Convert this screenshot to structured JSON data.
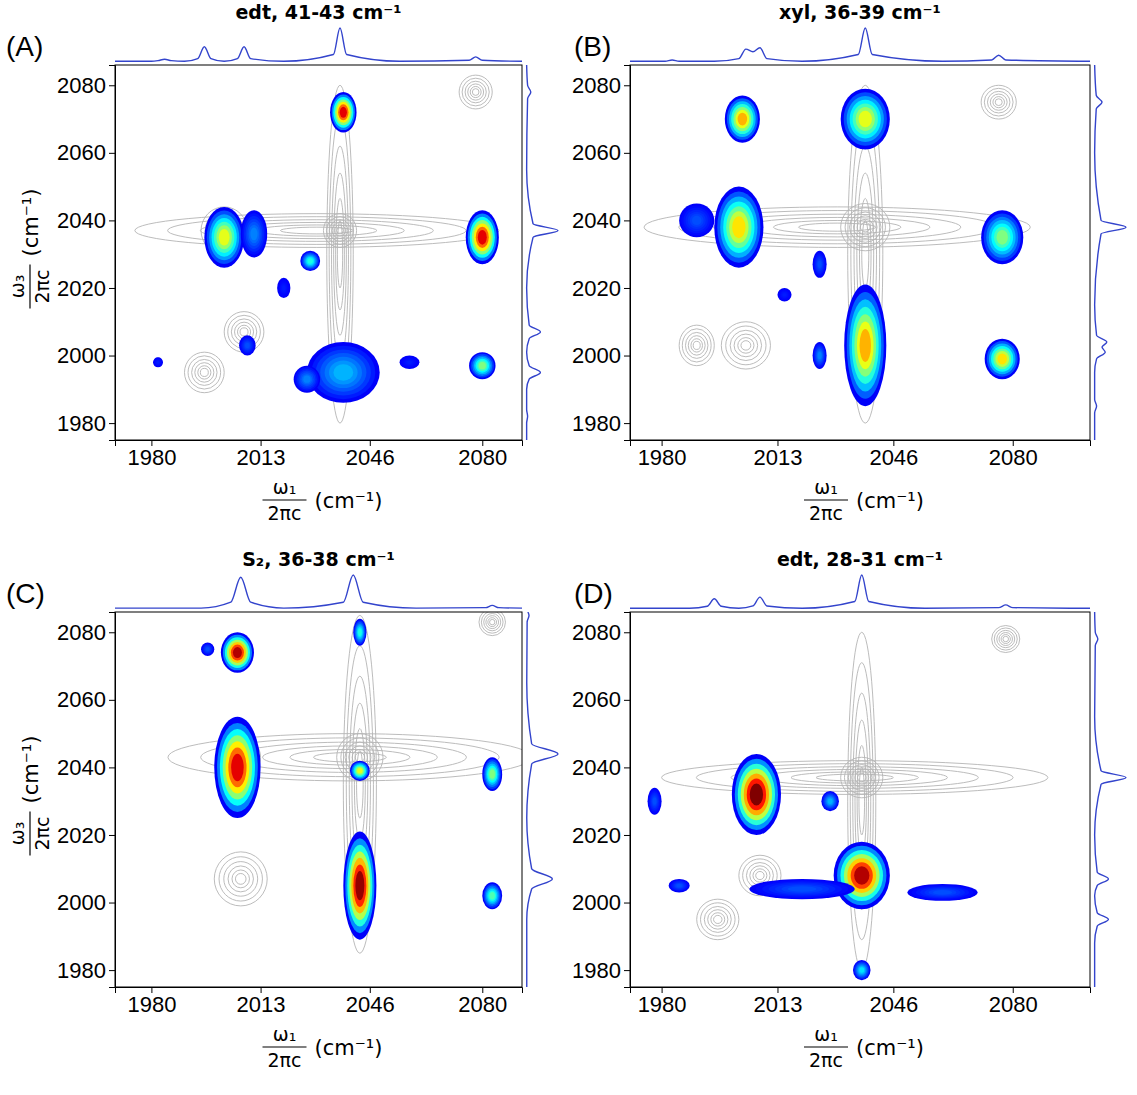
{
  "chart_data": [
    {
      "type": "contour",
      "label": "(A)",
      "title": "edt, 41-43 cm⁻¹",
      "x_label": {
        "numerator": "ω₁",
        "denominator": "2πc",
        "unit": "(cm⁻¹)"
      },
      "y_label": {
        "numerator": "ω₃",
        "denominator": "2πc",
        "unit": "(cm⁻¹)"
      },
      "xlim": [
        1969,
        2092
      ],
      "ylim": [
        1975,
        2086
      ],
      "xticks": [
        1980,
        2013,
        2046,
        2080
      ],
      "yticks": [
        1980,
        2000,
        2020,
        2040,
        2060,
        2080
      ],
      "top_spectrum": {
        "color": "#3344cc",
        "x": [
          1969,
          1980,
          1982,
          1984,
          1986,
          1990,
          1994,
          1996,
          1998,
          2002,
          2006,
          2008,
          2010,
          2020,
          2035,
          2037,
          2039,
          2055,
          2076,
          2078,
          2080,
          2092
        ],
        "values": [
          0.02,
          0.02,
          0.04,
          0.08,
          0.04,
          0.02,
          0.1,
          0.45,
          0.1,
          0.02,
          0.1,
          0.45,
          0.1,
          0.02,
          0.22,
          1.0,
          0.22,
          0.02,
          0.05,
          0.15,
          0.05,
          0.02
        ]
      },
      "side_spectrum": {
        "color": "#3344cc",
        "y": [
          1975,
          1980,
          1982,
          1984,
          1990,
          1993,
          1995,
          1997,
          2001,
          2005,
          2007,
          2009,
          2020,
          2035,
          2037,
          2039,
          2055,
          2076,
          2078,
          2080,
          2086
        ],
        "values": [
          0.02,
          0.02,
          0.05,
          0.02,
          0.02,
          0.1,
          0.45,
          0.1,
          0.02,
          0.1,
          0.45,
          0.1,
          0.02,
          0.22,
          1.0,
          0.22,
          0.02,
          0.05,
          0.15,
          0.05,
          0.02
        ]
      },
      "contours": {
        "color": "#b4b4b4",
        "x": [
          1996,
          2008,
          2037,
          2030,
          2037,
          2078,
          2037,
          2002
        ],
        "y": [
          1995,
          2007,
          2037,
          2037,
          2030,
          2078,
          1995,
          2037
        ],
        "x_width": [
          12,
          12,
          10,
          110,
          8,
          10,
          14,
          14
        ],
        "y_width": [
          12,
          12,
          10,
          10,
          100,
          10,
          14,
          14
        ]
      },
      "peaks": {
        "x": [
          2038,
          2002,
          2011,
          2080,
          2038,
          2027,
          2080,
          2009,
          2028,
          2020,
          2058,
          1982
        ],
        "y": [
          2072,
          2035,
          2036,
          2035,
          1995,
          1993,
          1997,
          2003,
          2028,
          2020,
          1998,
          1998
        ],
        "x_width": [
          8,
          12,
          8,
          10,
          22,
          8,
          8,
          5,
          6,
          4,
          6,
          3
        ],
        "y_width": [
          12,
          18,
          14,
          16,
          18,
          8,
          8,
          6,
          6,
          6,
          4,
          3
        ],
        "intensity": [
          0.9,
          0.6,
          0.25,
          0.9,
          0.3,
          0.25,
          0.5,
          0.2,
          0.4,
          0.15,
          0.15,
          0.15
        ]
      }
    },
    {
      "type": "contour",
      "label": "(B)",
      "title": "xyl, 36-39 cm⁻¹",
      "x_label": {
        "numerator": "ω₁",
        "denominator": "2πc",
        "unit": "(cm⁻¹)"
      },
      "xlim": [
        1971,
        2102
      ],
      "ylim": [
        1975,
        2086
      ],
      "xticks": [
        1980,
        2013,
        2046,
        2080
      ],
      "yticks": [
        1980,
        2000,
        2020,
        2040,
        2060,
        2080
      ],
      "top_spectrum": {
        "color": "#3344cc",
        "x": [
          1971,
          1981,
          1983,
          1985,
          1995,
          2002,
          2004,
          2006,
          2008,
          2010,
          2020,
          2036,
          2038,
          2040,
          2060,
          2074,
          2076,
          2078,
          2102
        ],
        "values": [
          0.02,
          0.02,
          0.06,
          0.02,
          0.02,
          0.1,
          0.38,
          0.3,
          0.42,
          0.1,
          0.02,
          0.22,
          1.0,
          0.22,
          0.02,
          0.06,
          0.2,
          0.06,
          0.02
        ]
      },
      "side_spectrum": {
        "color": "#3344cc",
        "y": [
          1975,
          1983,
          1985,
          1987,
          1995,
          1999,
          2001,
          2002.5,
          2004,
          2006,
          2015,
          2036,
          2038,
          2040,
          2060,
          2073,
          2075,
          2077,
          2086
        ],
        "values": [
          0.02,
          0.02,
          0.08,
          0.02,
          0.02,
          0.08,
          0.35,
          0.25,
          0.4,
          0.08,
          0.02,
          0.22,
          1.0,
          0.22,
          0.02,
          0.07,
          0.25,
          0.07,
          0.02
        ]
      },
      "contours": {
        "color": "#b4b4b4",
        "x": [
          2004,
          2038,
          2030,
          2038,
          1990,
          2076
        ],
        "y": [
          2003,
          2038,
          2038,
          2030,
          2003,
          2075
        ],
        "x_width": [
          14,
          14,
          110,
          10,
          10,
          10
        ],
        "y_width": [
          14,
          14,
          12,
          100,
          12,
          10
        ]
      },
      "peaks": {
        "x": [
          2003,
          2038,
          2002,
          1990,
          2077,
          2038,
          2077,
          2025,
          2025,
          2015
        ],
        "y": [
          2070,
          2070,
          2038,
          2040,
          2035,
          2003,
          1999,
          2027,
          2000,
          2018
        ],
        "x_width": [
          10,
          14,
          14,
          10,
          12,
          12,
          10,
          4,
          4,
          4
        ],
        "y_width": [
          14,
          18,
          24,
          10,
          16,
          36,
          12,
          8,
          8,
          4
        ],
        "intensity": [
          0.7,
          0.6,
          0.65,
          0.2,
          0.5,
          0.7,
          0.65,
          0.2,
          0.25,
          0.15
        ]
      }
    },
    {
      "type": "contour",
      "label": "(C)",
      "title": "S₂, 36-38 cm⁻¹",
      "x_label": {
        "numerator": "ω₁",
        "denominator": "2πc",
        "unit": "(cm⁻¹)"
      },
      "y_label": {
        "numerator": "ω₃",
        "denominator": "2πc",
        "unit": "(cm⁻¹)"
      },
      "xlim": [
        1969,
        2092
      ],
      "ylim": [
        1975,
        2086
      ],
      "xticks": [
        1980,
        2013,
        2046,
        2080
      ],
      "yticks": [
        1980,
        2000,
        2020,
        2040,
        2060,
        2080
      ],
      "top_spectrum": {
        "color": "#3344cc",
        "x": [
          1969,
          1995,
          2004,
          2007,
          2010,
          2020,
          2038,
          2041,
          2044,
          2060,
          2081,
          2083,
          2085,
          2092
        ],
        "values": [
          0.02,
          0.02,
          0.15,
          0.7,
          0.15,
          0.02,
          0.15,
          0.75,
          0.15,
          0.02,
          0.03,
          0.08,
          0.03,
          0.02
        ]
      },
      "side_spectrum": {
        "color": "#3344cc",
        "y": [
          1975,
          1995,
          2004,
          2007,
          2010,
          2025,
          2041,
          2044,
          2047,
          2065,
          2083,
          2085,
          2086
        ],
        "values": [
          0.02,
          0.02,
          0.15,
          0.7,
          0.15,
          0.02,
          0.15,
          0.85,
          0.15,
          0.02,
          0.03,
          0.08,
          0.05
        ]
      },
      "contours": {
        "color": "#b4b4b4",
        "x": [
          2007,
          2043,
          2040,
          2043,
          2083,
          2007
        ],
        "y": [
          2007,
          2043,
          2043,
          2035,
          2083,
          2043
        ],
        "x_width": [
          16,
          14,
          110,
          10,
          8,
          12
        ],
        "y_width": [
          16,
          14,
          14,
          100,
          8,
          12
        ]
      },
      "peaks": {
        "x": [
          2006,
          2006,
          2043,
          2043,
          2083,
          2043,
          2083,
          1997
        ],
        "y": [
          2074,
          2040,
          2080,
          2039,
          2038,
          2005,
          2002,
          2075
        ],
        "x_width": [
          10,
          14,
          4,
          6,
          6,
          10,
          6,
          4
        ],
        "y_width": [
          12,
          30,
          8,
          6,
          10,
          32,
          8,
          4
        ],
        "intensity": [
          0.95,
          0.9,
          0.4,
          0.6,
          0.5,
          0.98,
          0.45,
          0.2
        ]
      }
    },
    {
      "type": "contour",
      "label": "(D)",
      "title": "edt, 28-31 cm⁻¹",
      "x_label": {
        "numerator": "ω₁",
        "denominator": "2πc",
        "unit": "(cm⁻¹)"
      },
      "xlim": [
        1971,
        2102
      ],
      "ylim": [
        1975,
        2086
      ],
      "xticks": [
        1980,
        2013,
        2046,
        2080
      ],
      "yticks": [
        1980,
        2000,
        2020,
        2040,
        2060,
        2080
      ],
      "top_spectrum": {
        "color": "#3344cc",
        "x": [
          1971,
          1988,
          1993,
          1995,
          1997,
          2002,
          2006,
          2008,
          2010,
          2020,
          2035,
          2037,
          2039,
          2055,
          2076,
          2078,
          2080,
          2102
        ],
        "values": [
          0.02,
          0.02,
          0.08,
          0.3,
          0.08,
          0.02,
          0.09,
          0.35,
          0.09,
          0.02,
          0.22,
          1.0,
          0.22,
          0.02,
          0.04,
          0.12,
          0.04,
          0.02
        ]
      },
      "side_spectrum": {
        "color": "#3344cc",
        "y": [
          1975,
          1988,
          1993,
          1995,
          1997,
          2002,
          2005,
          2007,
          2009,
          2020,
          2035,
          2037,
          2039,
          2055,
          2076,
          2078,
          2080,
          2086
        ],
        "values": [
          0.02,
          0.02,
          0.1,
          0.45,
          0.1,
          0.02,
          0.1,
          0.45,
          0.1,
          0.02,
          0.22,
          1.0,
          0.22,
          0.02,
          0.04,
          0.12,
          0.04,
          0.02
        ]
      },
      "contours": {
        "color": "#b4b4b4",
        "x": [
          1996,
          2008,
          2037,
          2035,
          2037,
          2078
        ],
        "y": [
          1995,
          2008,
          2037,
          2037,
          2030,
          2078
        ],
        "x_width": [
          12,
          12,
          12,
          110,
          8,
          8
        ],
        "y_width": [
          12,
          12,
          12,
          10,
          100,
          8
        ]
      },
      "peaks": {
        "x": [
          2007,
          2037,
          2037,
          2028,
          2020,
          2060,
          1978,
          1985
        ],
        "y": [
          2032,
          2008,
          1980,
          2030,
          2004,
          2003,
          2030,
          2005
        ],
        "x_width": [
          14,
          16,
          5,
          5,
          30,
          20,
          4,
          6
        ],
        "y_width": [
          24,
          20,
          6,
          6,
          6,
          5,
          8,
          4
        ],
        "intensity": [
          1.0,
          0.95,
          0.35,
          0.3,
          0.2,
          0.2,
          0.2,
          0.2
        ]
      }
    }
  ]
}
